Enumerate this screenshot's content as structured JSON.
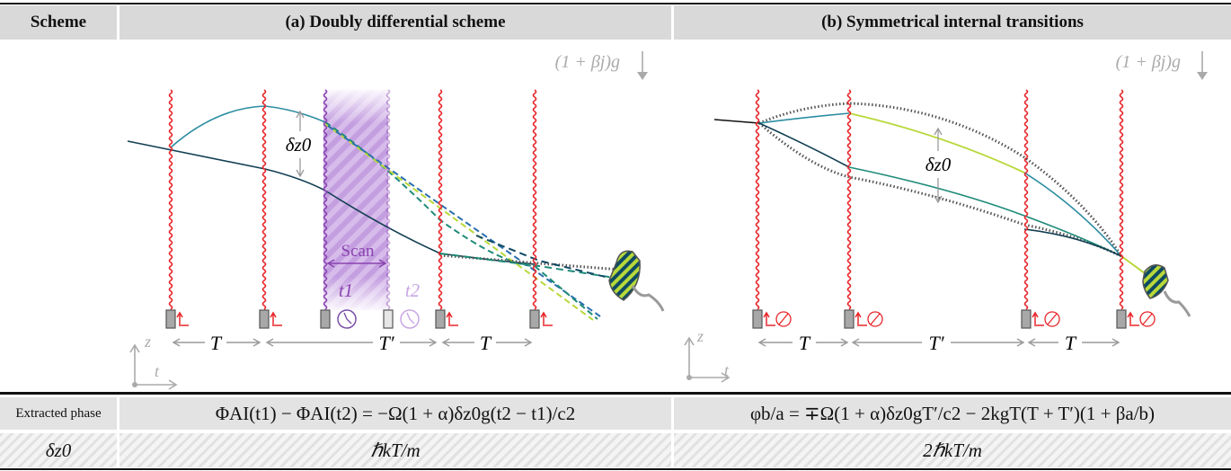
{
  "header": {
    "scheme_label": "Scheme",
    "col_a_title": "(a) Doubly differential scheme",
    "col_b_title": "(b) Symmetrical internal transitions"
  },
  "panel_a": {
    "gravity_label": "(1 + βj)g",
    "delta_label": "δz0",
    "scan_label": "Scan",
    "t1_label": "t1",
    "t2_label": "t2",
    "interval_T": "T",
    "interval_Tprime": "T′",
    "axis_z": "z",
    "axis_t": "t"
  },
  "panel_b": {
    "gravity_label": "(1 + βj)g",
    "delta_label": "δz0",
    "interval_T": "T",
    "interval_Tprime": "T′",
    "axis_z": "z",
    "axis_t": "t"
  },
  "rows": {
    "phase_label": "Extracted phase",
    "phase_a": "ΦAI(t1) − ΦAI(t2) = −Ω(1 + α)δz0g(t2 − t1)/c2",
    "phase_b": "φb/a = ∓Ω(1 + α)δz0gT′/c2 − 2kgT(T + T′)(1 + βa/b)",
    "dz_label": "δz0",
    "dz_a": "ℏkT/m",
    "dz_b": "2ℏkT/m"
  },
  "colors": {
    "laser": "#e8262a",
    "scan": "#8a44b0",
    "upper_arm": "#2a8ca0",
    "lower_arm": "#123f52",
    "mid_arm": "#1e8a78",
    "light_arm": "#b8d83a",
    "clock": "#7a4fa8",
    "gray": "#9a9a9a"
  }
}
